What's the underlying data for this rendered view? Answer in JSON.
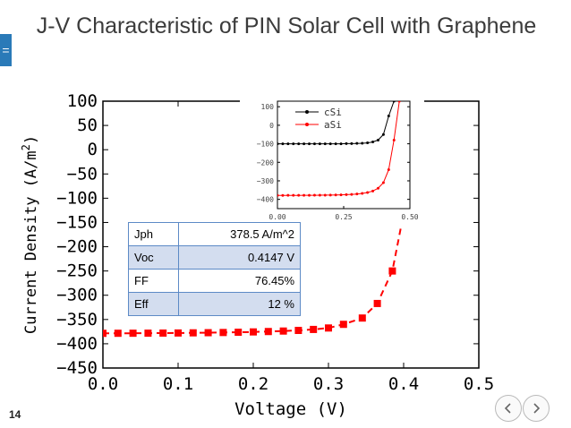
{
  "slide": {
    "title": "J-V Characteristic of PIN Solar Cell with Graphene",
    "number": "14",
    "menu_glyph": "="
  },
  "nav": {
    "prev_icon": "chevron-left-icon",
    "next_icon": "chevron-right-icon"
  },
  "table": {
    "rows": [
      {
        "label": "Jph",
        "value": "378.5 A/m^2"
      },
      {
        "label": "Voc",
        "value": "0.4147 V"
      },
      {
        "label": "FF",
        "value": "76.45%"
      },
      {
        "label": "Eff",
        "value": "12 %"
      }
    ]
  },
  "colors": {
    "main_series": "#ff0000",
    "csi": "#000000",
    "asi": "#ff0000",
    "title_text": "#3b3b3b",
    "menu_tab": "#2a7ab8"
  },
  "chart_data": [
    {
      "type": "line",
      "xlabel": "Voltage (V)",
      "ylabel": "Current Density (A/m^2)",
      "xlim": [
        0,
        0.5
      ],
      "ylim": [
        -450,
        100
      ],
      "xticks": [
        "0.0",
        "0.1",
        "0.2",
        "0.3",
        "0.4",
        "0.5"
      ],
      "yticks": [
        "100",
        "50",
        "0",
        "-50",
        "-100",
        "-150",
        "-200",
        "-250",
        "-300",
        "-350",
        "-400",
        "-450"
      ],
      "series": [
        {
          "x": [
            0.0,
            0.02,
            0.04,
            0.06,
            0.08,
            0.1,
            0.12,
            0.14,
            0.16,
            0.18,
            0.2,
            0.22,
            0.24,
            0.26,
            0.28,
            0.3,
            0.32,
            0.345,
            0.365,
            0.385,
            0.405,
            0.415,
            0.42
          ],
          "y": [
            -378.5,
            -378.4,
            -378.3,
            -378.2,
            -378.0,
            -377.8,
            -377.5,
            -377.2,
            -376.8,
            -376.3,
            -375.6,
            -374.8,
            -373.8,
            -372.5,
            -370.5,
            -367.5,
            -360,
            -347,
            -317,
            -250,
            -92,
            60,
            100
          ]
        }
      ]
    },
    {
      "type": "line",
      "xlim": [
        0,
        0.5
      ],
      "ylim": [
        -450,
        130
      ],
      "xticks": [
        "0.00",
        "0.25",
        "0.50"
      ],
      "yticks": [
        "100",
        "0",
        "-100",
        "-200",
        "-300",
        "-400"
      ],
      "legend_position": "top-right",
      "series": [
        {
          "name": "cSi",
          "x": [
            0.0,
            0.02,
            0.04,
            0.06,
            0.08,
            0.1,
            0.12,
            0.14,
            0.16,
            0.18,
            0.2,
            0.22,
            0.24,
            0.26,
            0.28,
            0.3,
            0.32,
            0.34,
            0.36,
            0.38,
            0.4,
            0.42,
            0.44
          ],
          "y": [
            -100,
            -100,
            -100,
            -100,
            -100,
            -100,
            -100,
            -100,
            -100,
            -100,
            -100,
            -100,
            -100,
            -99,
            -99,
            -98,
            -97,
            -95,
            -90,
            -80,
            -50,
            50,
            130
          ]
        },
        {
          "name": "aSi",
          "x": [
            0.0,
            0.02,
            0.04,
            0.06,
            0.08,
            0.1,
            0.12,
            0.14,
            0.16,
            0.18,
            0.2,
            0.22,
            0.24,
            0.26,
            0.28,
            0.3,
            0.32,
            0.34,
            0.36,
            0.38,
            0.4,
            0.42,
            0.44,
            0.46
          ],
          "y": [
            -378.5,
            -378.5,
            -378.4,
            -378.4,
            -378.3,
            -378.2,
            -378,
            -377.8,
            -377.5,
            -377.2,
            -376.8,
            -376.2,
            -375.5,
            -374.5,
            -373,
            -371,
            -368,
            -363,
            -355,
            -340,
            -310,
            -240,
            -80,
            130
          ]
        }
      ]
    }
  ]
}
